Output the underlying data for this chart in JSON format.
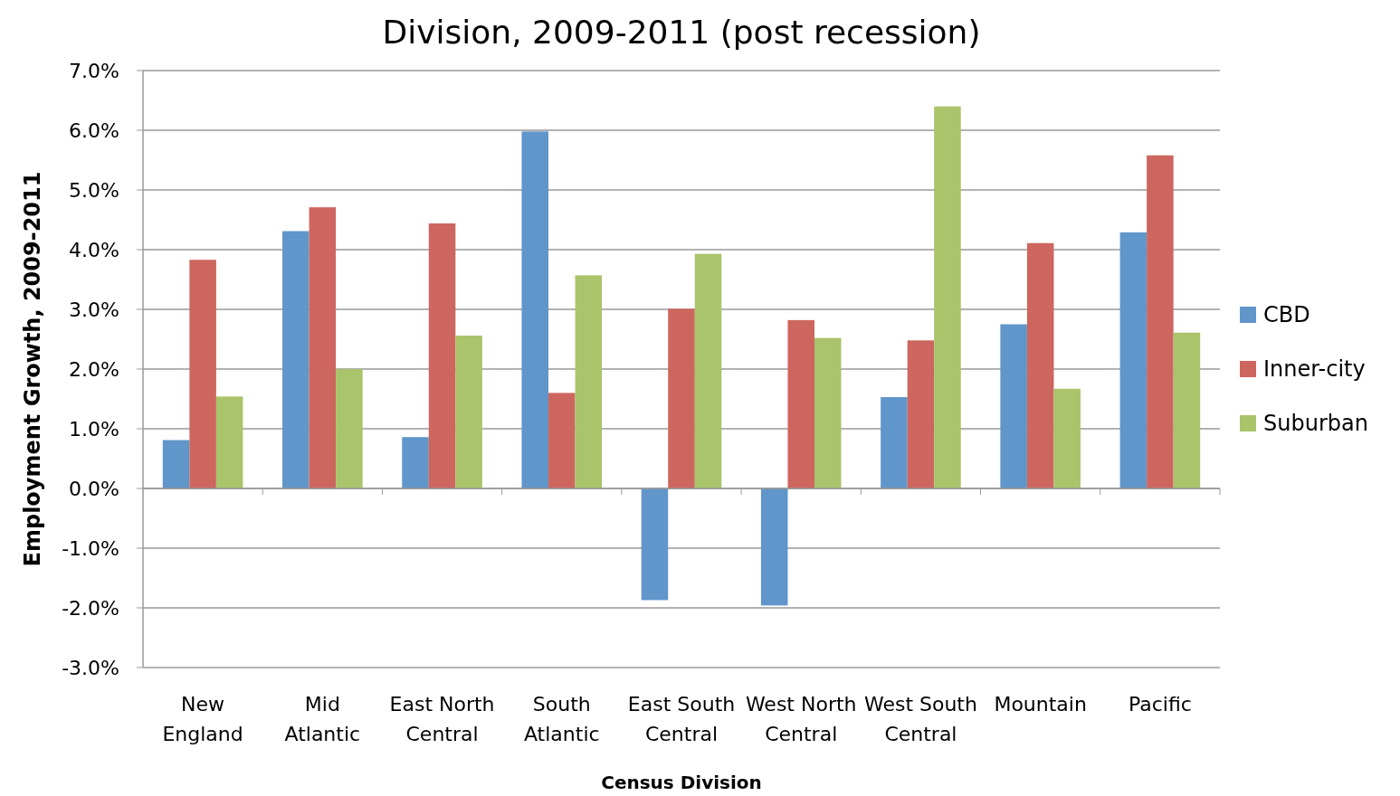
{
  "chart_data": {
    "type": "bar",
    "title": "Division, 2009-2011 (post recession)",
    "xlabel": "Census Division",
    "ylabel": "Employment Growth, 2009-2011",
    "categories": [
      "New England",
      "Mid Atlantic",
      "East North Central",
      "South Atlantic",
      "East South Central",
      "West North Central",
      "West South Central",
      "Mountain",
      "Pacific"
    ],
    "series": [
      {
        "name": "CBD",
        "color": "#6096ca",
        "values": [
          0.81,
          4.31,
          0.86,
          5.98,
          -1.87,
          -1.96,
          1.53,
          2.75,
          4.29
        ]
      },
      {
        "name": "Inner-city",
        "color": "#cd665f",
        "values": [
          3.83,
          4.71,
          4.44,
          1.6,
          3.01,
          2.82,
          2.48,
          4.11,
          5.58
        ]
      },
      {
        "name": "Suburban",
        "color": "#a9c46a",
        "values": [
          1.54,
          2.0,
          2.56,
          3.57,
          3.93,
          2.52,
          6.4,
          1.67,
          2.61
        ]
      }
    ],
    "ylim": [
      -3,
      7
    ],
    "yticks": [
      {
        "value": -3,
        "label": "-3.0%"
      },
      {
        "value": -2,
        "label": "-2.0%"
      },
      {
        "value": -1,
        "label": "-1.0%"
      },
      {
        "value": 0,
        "label": "0.0%"
      },
      {
        "value": 1,
        "label": "1.0%"
      },
      {
        "value": 2,
        "label": "2.0%"
      },
      {
        "value": 3,
        "label": "3.0%"
      },
      {
        "value": 4,
        "label": "4.0%"
      },
      {
        "value": 5,
        "label": "5.0%"
      },
      {
        "value": 6,
        "label": "6.0%"
      },
      {
        "value": 7,
        "label": "7.0%"
      }
    ],
    "grid": "y",
    "legend": "right"
  }
}
